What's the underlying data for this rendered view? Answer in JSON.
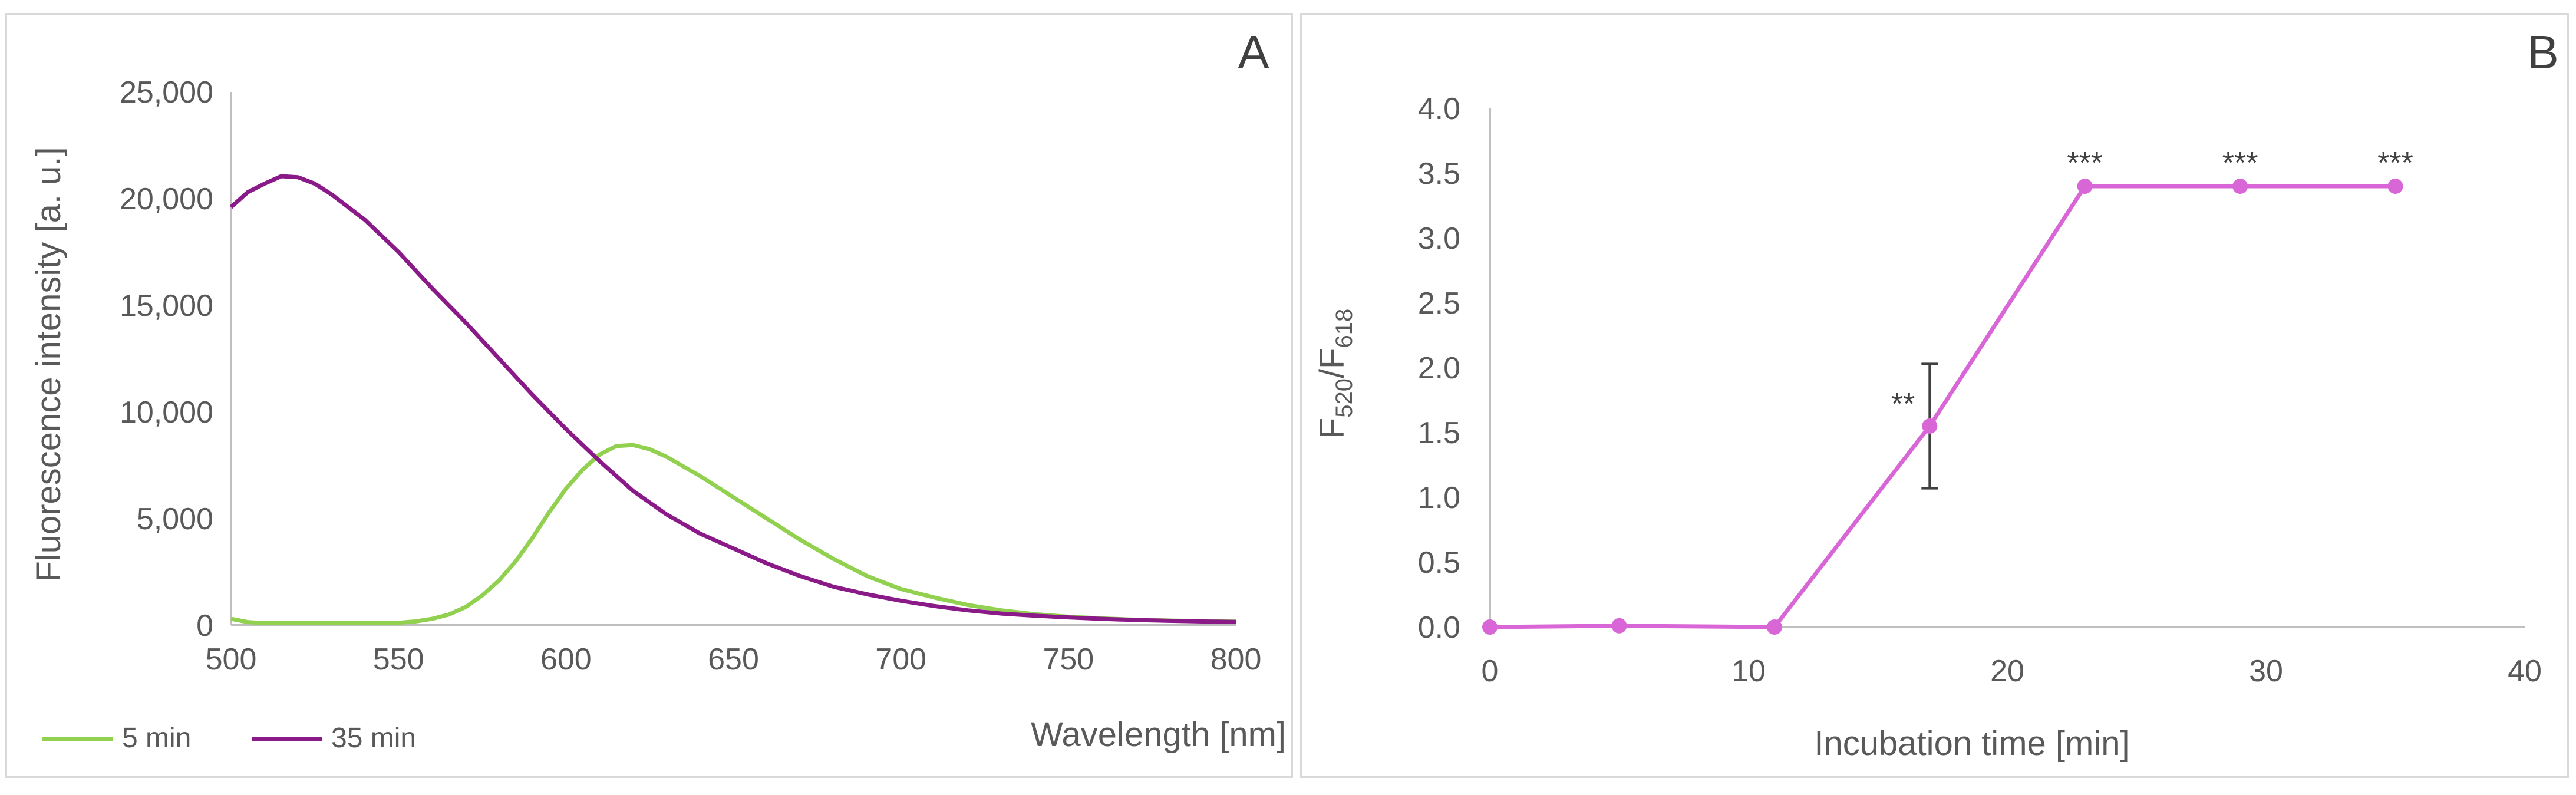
{
  "chart_data": [
    {
      "panel": "A",
      "type": "line",
      "xlabel": "Wavelength [nm]",
      "ylabel": "Fluorescence intensity [a. u.]",
      "xlim": [
        500,
        800
      ],
      "ylim": [
        0,
        25000
      ],
      "x_ticks": [
        "500",
        "550",
        "600",
        "650",
        "700",
        "750",
        "800"
      ],
      "y_ticks": [
        "0",
        "5,000",
        "10,000",
        "15,000",
        "20,000",
        "25,000"
      ],
      "legend_position": "bottom-left",
      "series": [
        {
          "name": "5 min",
          "color": "#92d050",
          "points": [
            [
              500,
              300
            ],
            [
              505,
              150
            ],
            [
              510,
              100
            ],
            [
              520,
              100
            ],
            [
              530,
              100
            ],
            [
              540,
              100
            ],
            [
              550,
              120
            ],
            [
              555,
              180
            ],
            [
              560,
              300
            ],
            [
              565,
              500
            ],
            [
              570,
              850
            ],
            [
              575,
              1400
            ],
            [
              580,
              2100
            ],
            [
              585,
              3000
            ],
            [
              590,
              4100
            ],
            [
              595,
              5300
            ],
            [
              600,
              6400
            ],
            [
              605,
              7300
            ],
            [
              610,
              8000
            ],
            [
              615,
              8400
            ],
            [
              620,
              8450
            ],
            [
              625,
              8250
            ],
            [
              630,
              7900
            ],
            [
              640,
              7000
            ],
            [
              650,
              6000
            ],
            [
              660,
              5000
            ],
            [
              670,
              4000
            ],
            [
              680,
              3100
            ],
            [
              690,
              2300
            ],
            [
              700,
              1700
            ],
            [
              710,
              1300
            ],
            [
              720,
              950
            ],
            [
              730,
              700
            ],
            [
              740,
              520
            ],
            [
              750,
              400
            ],
            [
              760,
              320
            ],
            [
              770,
              260
            ],
            [
              780,
              220
            ],
            [
              790,
              190
            ],
            [
              800,
              170
            ]
          ]
        },
        {
          "name": "35 min",
          "color": "#8b1a89",
          "points": [
            [
              500,
              19600
            ],
            [
              505,
              20300
            ],
            [
              510,
              20700
            ],
            [
              515,
              21050
            ],
            [
              520,
              21000
            ],
            [
              525,
              20700
            ],
            [
              530,
              20200
            ],
            [
              540,
              19000
            ],
            [
              550,
              17500
            ],
            [
              560,
              15800
            ],
            [
              570,
              14200
            ],
            [
              580,
              12500
            ],
            [
              590,
              10800
            ],
            [
              600,
              9200
            ],
            [
              610,
              7700
            ],
            [
              620,
              6300
            ],
            [
              630,
              5200
            ],
            [
              640,
              4300
            ],
            [
              650,
              3600
            ],
            [
              660,
              2900
            ],
            [
              670,
              2300
            ],
            [
              680,
              1800
            ],
            [
              690,
              1450
            ],
            [
              700,
              1150
            ],
            [
              710,
              900
            ],
            [
              720,
              700
            ],
            [
              730,
              550
            ],
            [
              740,
              450
            ],
            [
              750,
              370
            ],
            [
              760,
              300
            ],
            [
              770,
              250
            ],
            [
              780,
              210
            ],
            [
              790,
              180
            ],
            [
              800,
              160
            ]
          ]
        }
      ]
    },
    {
      "panel": "B",
      "type": "line",
      "xlabel": "Incubation time [min]",
      "ylabel": {
        "main": "F",
        "sub1": "520",
        "slash": "/F",
        "sub2": "618"
      },
      "xlim": [
        0,
        40
      ],
      "ylim": [
        0,
        4
      ],
      "x_ticks": [
        "0",
        "10",
        "20",
        "30",
        "40"
      ],
      "y_ticks": [
        "0.0",
        "0.5",
        "1.0",
        "1.5",
        "2.0",
        "2.5",
        "3.0",
        "3.5",
        "4.0"
      ],
      "series": [
        {
          "name": "F520/F618",
          "color": "#d966d6",
          "x": [
            0,
            5,
            11,
            17,
            23,
            29,
            35
          ],
          "y": [
            0.0,
            0.01,
            0.0,
            1.55,
            3.4,
            3.4,
            3.4
          ],
          "error": [
            null,
            null,
            null,
            0.48,
            null,
            null,
            null
          ],
          "annotations": [
            "",
            "",
            "",
            "**",
            "***",
            "***",
            "***"
          ]
        }
      ]
    }
  ]
}
